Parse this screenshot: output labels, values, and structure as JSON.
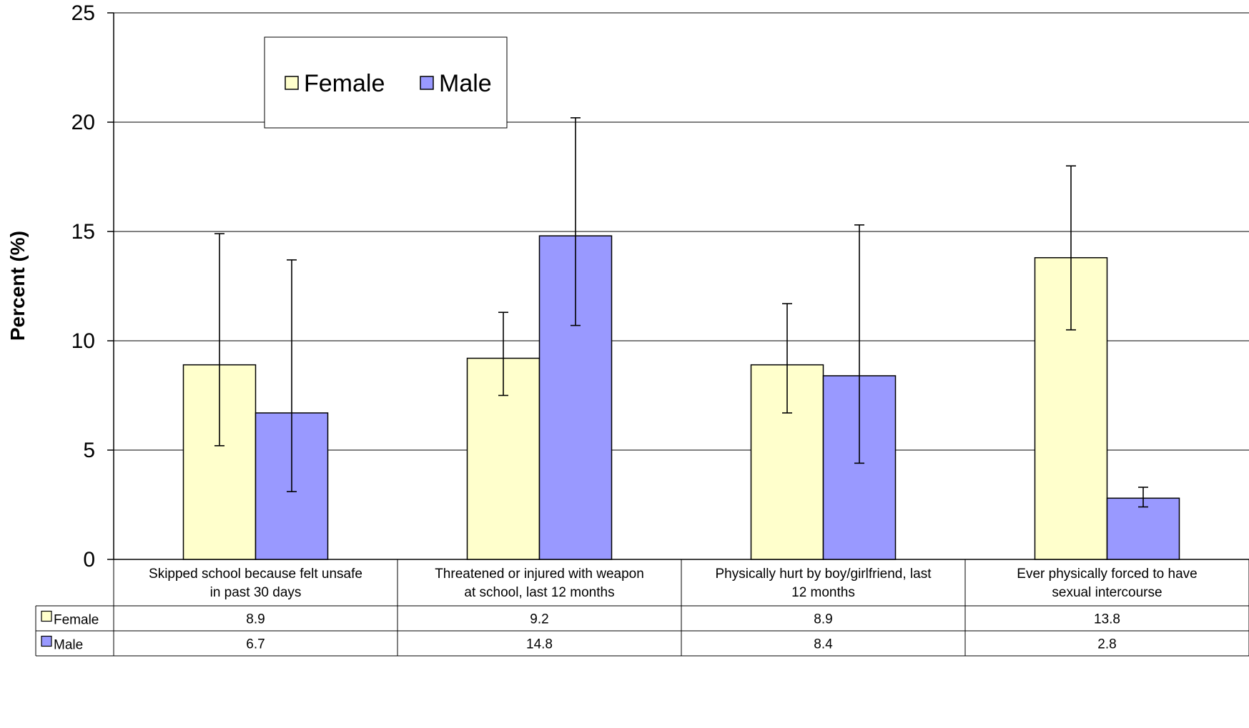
{
  "chart_data": {
    "type": "bar",
    "title": "",
    "xlabel": "",
    "ylabel": "Percent (%)",
    "ylim": [
      0,
      25
    ],
    "yticks": [
      0,
      5,
      10,
      15,
      20,
      25
    ],
    "grid": true,
    "legend_position": "top-left",
    "categories": [
      [
        "Skipped school because felt unsafe",
        "in past 30 days"
      ],
      [
        "Threatened or injured with weapon",
        "at school, last 12 months"
      ],
      [
        "Physically hurt by boy/girlfriend, last",
        "12 months"
      ],
      [
        "Ever physically forced to have",
        "sexual intercourse"
      ]
    ],
    "series": [
      {
        "name": "Female",
        "color": "#FFFFCC",
        "values": [
          8.9,
          9.2,
          8.9,
          13.8
        ],
        "value_labels": [
          "8.9",
          "9.2",
          "8.9",
          "13.8"
        ],
        "error_low": [
          5.2,
          7.5,
          6.7,
          10.5
        ],
        "error_high": [
          14.9,
          11.3,
          11.7,
          18.0
        ]
      },
      {
        "name": "Male",
        "color": "#9999FF",
        "values": [
          6.7,
          14.8,
          8.4,
          2.8
        ],
        "value_labels": [
          "6.7",
          "14.8",
          "8.4",
          "2.8"
        ],
        "error_low": [
          3.1,
          10.7,
          4.4,
          2.4
        ],
        "error_high": [
          13.7,
          20.2,
          15.3,
          3.3
        ]
      }
    ]
  }
}
